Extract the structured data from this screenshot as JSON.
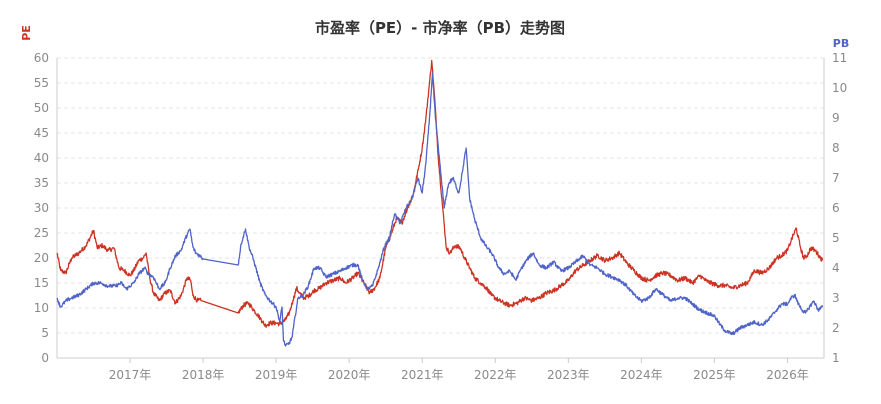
{
  "chart_data": {
    "type": "line",
    "title": "市盈率（PE）- 市净率（PB）走势图",
    "y_left": {
      "name": "PE",
      "min": 0,
      "max": 60,
      "ticks": [
        0,
        5,
        10,
        15,
        20,
        25,
        30,
        35,
        40,
        45,
        50,
        55,
        60
      ],
      "color": "#cc3322"
    },
    "y_right": {
      "name": "PB",
      "min": 1,
      "max": 11,
      "ticks": [
        1,
        2,
        3,
        4,
        5,
        6,
        7,
        8,
        9,
        10,
        11
      ],
      "color": "#4f63c8"
    },
    "x_axis": {
      "min": 2016.0,
      "max": 2026.5,
      "ticks": [
        {
          "x": 2017.0,
          "label": "2017年"
        },
        {
          "x": 2018.0,
          "label": "2018年"
        },
        {
          "x": 2019.0,
          "label": "2019年"
        },
        {
          "x": 2020.0,
          "label": "2020年"
        },
        {
          "x": 2021.0,
          "label": "2021年"
        },
        {
          "x": 2022.0,
          "label": "2022年"
        },
        {
          "x": 2023.0,
          "label": "2023年"
        },
        {
          "x": 2024.0,
          "label": "2024年"
        },
        {
          "x": 2025.0,
          "label": "2025年"
        },
        {
          "x": 2026.0,
          "label": "2026年"
        }
      ]
    },
    "grid": true,
    "series": [
      {
        "axis": "left",
        "color": "#cc3322",
        "points": [
          [
            2016.0,
            21.0
          ],
          [
            2016.05,
            17.5
          ],
          [
            2016.12,
            17.0
          ],
          [
            2016.2,
            20.0
          ],
          [
            2016.3,
            21.0
          ],
          [
            2016.4,
            22.5
          ],
          [
            2016.5,
            25.5
          ],
          [
            2016.55,
            22.0
          ],
          [
            2016.62,
            22.5
          ],
          [
            2016.7,
            21.5
          ],
          [
            2016.78,
            22.0
          ],
          [
            2016.85,
            18.0
          ],
          [
            2016.92,
            17.5
          ],
          [
            2017.0,
            16.5
          ],
          [
            2017.05,
            17.5
          ],
          [
            2017.12,
            19.5
          ],
          [
            2017.18,
            20.0
          ],
          [
            2017.22,
            21.0
          ],
          [
            2017.27,
            16.0
          ],
          [
            2017.32,
            13.0
          ],
          [
            2017.4,
            11.5
          ],
          [
            2017.48,
            13.0
          ],
          [
            2017.55,
            13.5
          ],
          [
            2017.62,
            11.0
          ],
          [
            2017.7,
            12.5
          ],
          [
            2017.78,
            16.0
          ],
          [
            2017.83,
            15.5
          ],
          [
            2017.86,
            12.5
          ],
          [
            2017.92,
            11.5
          ],
          [
            2017.97,
            11.5
          ],
          [
            2018.48,
            9.0
          ],
          [
            2018.55,
            10.5
          ],
          [
            2018.62,
            11.0
          ],
          [
            2018.7,
            9.5
          ],
          [
            2018.78,
            8.0
          ],
          [
            2018.85,
            6.5
          ],
          [
            2018.92,
            7.0
          ],
          [
            2019.0,
            7.0
          ],
          [
            2019.05,
            6.8
          ],
          [
            2019.12,
            7.5
          ],
          [
            2019.18,
            9.0
          ],
          [
            2019.23,
            11.5
          ],
          [
            2019.28,
            14.0
          ],
          [
            2019.32,
            13.0
          ],
          [
            2019.38,
            12.0
          ],
          [
            2019.45,
            12.5
          ],
          [
            2019.52,
            13.5
          ],
          [
            2019.6,
            14.0
          ],
          [
            2019.68,
            15.0
          ],
          [
            2019.78,
            15.5
          ],
          [
            2019.88,
            16.0
          ],
          [
            2019.95,
            15.0
          ],
          [
            2020.05,
            16.0
          ],
          [
            2020.12,
            17.0
          ],
          [
            2020.2,
            15.0
          ],
          [
            2020.28,
            13.0
          ],
          [
            2020.35,
            14.0
          ],
          [
            2020.42,
            16.0
          ],
          [
            2020.5,
            22.0
          ],
          [
            2020.58,
            25.0
          ],
          [
            2020.65,
            28.0
          ],
          [
            2020.72,
            27.0
          ],
          [
            2020.8,
            30.0
          ],
          [
            2020.88,
            33.0
          ],
          [
            2020.95,
            38.0
          ],
          [
            2021.0,
            42.0
          ],
          [
            2021.05,
            48.0
          ],
          [
            2021.1,
            55.0
          ],
          [
            2021.13,
            59.5
          ],
          [
            2021.17,
            52.0
          ],
          [
            2021.22,
            40.0
          ],
          [
            2021.28,
            30.0
          ],
          [
            2021.33,
            22.0
          ],
          [
            2021.38,
            21.0
          ],
          [
            2021.45,
            22.5
          ],
          [
            2021.52,
            22.0
          ],
          [
            2021.58,
            20.0
          ],
          [
            2021.65,
            18.0
          ],
          [
            2021.72,
            16.0
          ],
          [
            2021.8,
            15.0
          ],
          [
            2021.88,
            14.0
          ],
          [
            2021.95,
            12.5
          ],
          [
            2022.05,
            11.5
          ],
          [
            2022.12,
            11.0
          ],
          [
            2022.2,
            10.5
          ],
          [
            2022.3,
            11.0
          ],
          [
            2022.4,
            12.0
          ],
          [
            2022.5,
            11.5
          ],
          [
            2022.6,
            12.0
          ],
          [
            2022.7,
            13.0
          ],
          [
            2022.8,
            13.5
          ],
          [
            2022.9,
            14.5
          ],
          [
            2023.0,
            15.5
          ],
          [
            2023.1,
            17.5
          ],
          [
            2023.2,
            18.5
          ],
          [
            2023.3,
            19.5
          ],
          [
            2023.4,
            20.5
          ],
          [
            2023.5,
            19.5
          ],
          [
            2023.6,
            20.0
          ],
          [
            2023.7,
            21.0
          ],
          [
            2023.8,
            19.0
          ],
          [
            2023.9,
            17.5
          ],
          [
            2024.0,
            16.0
          ],
          [
            2024.1,
            15.5
          ],
          [
            2024.2,
            16.5
          ],
          [
            2024.3,
            17.0
          ],
          [
            2024.4,
            16.5
          ],
          [
            2024.5,
            15.5
          ],
          [
            2024.6,
            16.0
          ],
          [
            2024.7,
            15.0
          ],
          [
            2024.8,
            16.5
          ],
          [
            2024.88,
            15.5
          ],
          [
            2024.95,
            15.0
          ],
          [
            2025.05,
            14.5
          ],
          [
            2025.15,
            14.5
          ],
          [
            2025.25,
            14.0
          ],
          [
            2025.35,
            14.5
          ],
          [
            2025.45,
            15.0
          ],
          [
            2025.55,
            17.5
          ],
          [
            2025.65,
            17.0
          ],
          [
            2025.75,
            18.0
          ],
          [
            2025.85,
            20.0
          ],
          [
            2025.92,
            20.5
          ],
          [
            2026.0,
            21.5
          ],
          [
            2026.05,
            23.5
          ],
          [
            2026.12,
            26.0
          ],
          [
            2026.18,
            22.0
          ],
          [
            2026.22,
            20.0
          ],
          [
            2026.27,
            20.5
          ],
          [
            2026.32,
            22.0
          ],
          [
            2026.38,
            21.5
          ],
          [
            2026.43,
            20.5
          ],
          [
            2026.48,
            19.5
          ]
        ]
      },
      {
        "axis": "right",
        "color": "#4f63c8",
        "points": [
          [
            2016.0,
            3.0
          ],
          [
            2016.05,
            2.7
          ],
          [
            2016.12,
            2.9
          ],
          [
            2016.2,
            3.0
          ],
          [
            2016.3,
            3.1
          ],
          [
            2016.4,
            3.3
          ],
          [
            2016.5,
            3.5
          ],
          [
            2016.6,
            3.5
          ],
          [
            2016.7,
            3.4
          ],
          [
            2016.8,
            3.4
          ],
          [
            2016.88,
            3.5
          ],
          [
            2016.95,
            3.3
          ],
          [
            2017.05,
            3.5
          ],
          [
            2017.12,
            3.8
          ],
          [
            2017.2,
            4.0
          ],
          [
            2017.25,
            3.8
          ],
          [
            2017.32,
            3.7
          ],
          [
            2017.4,
            3.3
          ],
          [
            2017.48,
            3.5
          ],
          [
            2017.55,
            4.0
          ],
          [
            2017.62,
            4.4
          ],
          [
            2017.7,
            4.6
          ],
          [
            2017.76,
            5.0
          ],
          [
            2017.82,
            5.3
          ],
          [
            2017.86,
            4.7
          ],
          [
            2017.9,
            4.5
          ],
          [
            2017.96,
            4.4
          ],
          [
            2018.0,
            4.3
          ],
          [
            2018.48,
            4.1
          ],
          [
            2018.52,
            4.8
          ],
          [
            2018.58,
            5.3
          ],
          [
            2018.63,
            4.7
          ],
          [
            2018.7,
            4.2
          ],
          [
            2018.78,
            3.5
          ],
          [
            2018.85,
            3.1
          ],
          [
            2018.92,
            2.9
          ],
          [
            2019.0,
            2.7
          ],
          [
            2019.05,
            2.2
          ],
          [
            2019.08,
            2.7
          ],
          [
            2019.1,
            1.6
          ],
          [
            2019.13,
            1.4
          ],
          [
            2019.18,
            1.5
          ],
          [
            2019.22,
            1.7
          ],
          [
            2019.26,
            2.4
          ],
          [
            2019.3,
            3.0
          ],
          [
            2019.37,
            3.1
          ],
          [
            2019.44,
            3.4
          ],
          [
            2019.52,
            4.0
          ],
          [
            2019.6,
            4.0
          ],
          [
            2019.68,
            3.7
          ],
          [
            2019.78,
            3.8
          ],
          [
            2019.88,
            3.9
          ],
          [
            2019.95,
            4.0
          ],
          [
            2020.05,
            4.1
          ],
          [
            2020.12,
            4.1
          ],
          [
            2020.18,
            3.6
          ],
          [
            2020.25,
            3.3
          ],
          [
            2020.32,
            3.4
          ],
          [
            2020.4,
            4.0
          ],
          [
            2020.48,
            4.7
          ],
          [
            2020.55,
            5.0
          ],
          [
            2020.62,
            5.8
          ],
          [
            2020.7,
            5.5
          ],
          [
            2020.78,
            6.0
          ],
          [
            2020.86,
            6.3
          ],
          [
            2020.94,
            7.0
          ],
          [
            2021.0,
            6.5
          ],
          [
            2021.05,
            7.5
          ],
          [
            2021.1,
            9.0
          ],
          [
            2021.14,
            10.5
          ],
          [
            2021.18,
            9.0
          ],
          [
            2021.24,
            7.5
          ],
          [
            2021.3,
            6.0
          ],
          [
            2021.36,
            6.8
          ],
          [
            2021.42,
            7.0
          ],
          [
            2021.5,
            6.5
          ],
          [
            2021.55,
            7.2
          ],
          [
            2021.6,
            8.0
          ],
          [
            2021.65,
            6.3
          ],
          [
            2021.72,
            5.6
          ],
          [
            2021.8,
            5.0
          ],
          [
            2021.88,
            4.7
          ],
          [
            2021.95,
            4.5
          ],
          [
            2022.05,
            4.0
          ],
          [
            2022.12,
            3.8
          ],
          [
            2022.2,
            3.9
          ],
          [
            2022.28,
            3.6
          ],
          [
            2022.36,
            4.0
          ],
          [
            2022.44,
            4.3
          ],
          [
            2022.52,
            4.5
          ],
          [
            2022.6,
            4.1
          ],
          [
            2022.7,
            4.0
          ],
          [
            2022.8,
            4.2
          ],
          [
            2022.9,
            3.9
          ],
          [
            2023.0,
            4.0
          ],
          [
            2023.1,
            4.2
          ],
          [
            2023.2,
            4.4
          ],
          [
            2023.3,
            4.1
          ],
          [
            2023.4,
            4.0
          ],
          [
            2023.5,
            3.8
          ],
          [
            2023.6,
            3.7
          ],
          [
            2023.7,
            3.6
          ],
          [
            2023.8,
            3.4
          ],
          [
            2023.9,
            3.1
          ],
          [
            2024.0,
            2.9
          ],
          [
            2024.1,
            3.0
          ],
          [
            2024.2,
            3.3
          ],
          [
            2024.3,
            3.1
          ],
          [
            2024.4,
            2.9
          ],
          [
            2024.5,
            3.0
          ],
          [
            2024.6,
            3.0
          ],
          [
            2024.7,
            2.8
          ],
          [
            2024.8,
            2.6
          ],
          [
            2024.9,
            2.5
          ],
          [
            2025.0,
            2.4
          ],
          [
            2025.08,
            2.1
          ],
          [
            2025.15,
            1.9
          ],
          [
            2025.25,
            1.8
          ],
          [
            2025.35,
            2.0
          ],
          [
            2025.45,
            2.1
          ],
          [
            2025.55,
            2.2
          ],
          [
            2025.65,
            2.1
          ],
          [
            2025.75,
            2.3
          ],
          [
            2025.85,
            2.6
          ],
          [
            2025.92,
            2.8
          ],
          [
            2026.0,
            2.8
          ],
          [
            2026.05,
            3.0
          ],
          [
            2026.1,
            3.1
          ],
          [
            2026.15,
            2.8
          ],
          [
            2026.2,
            2.6
          ],
          [
            2026.25,
            2.5
          ],
          [
            2026.3,
            2.7
          ],
          [
            2026.36,
            2.9
          ],
          [
            2026.42,
            2.6
          ],
          [
            2026.48,
            2.7
          ]
        ]
      }
    ]
  }
}
